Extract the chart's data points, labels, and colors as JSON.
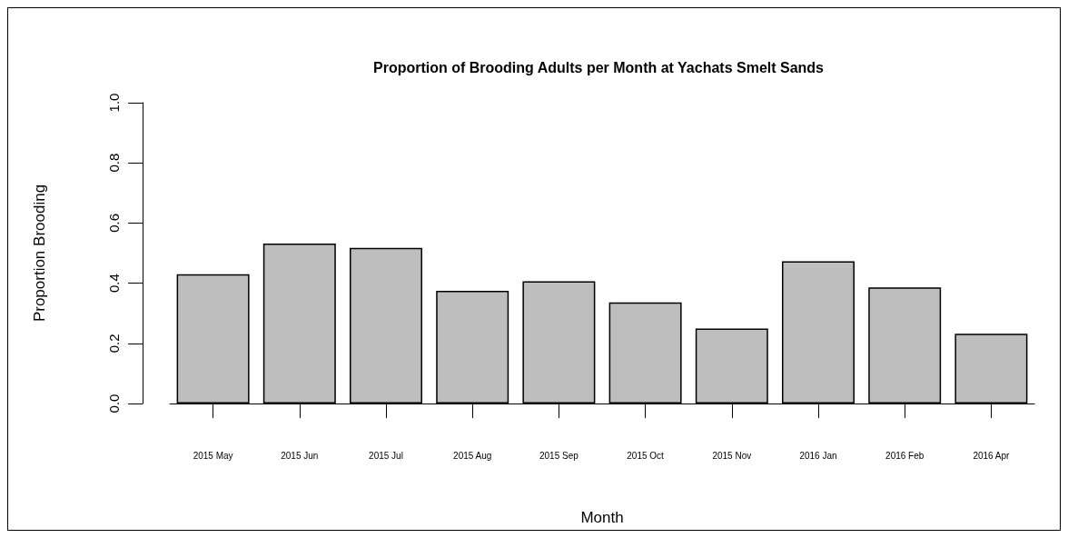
{
  "chart_data": {
    "type": "bar",
    "title": "Proportion of Brooding Adults per Month at Yachats Smelt Sands",
    "xlabel": "Month",
    "ylabel": "Proportion Brooding",
    "categories": [
      "2015 May",
      "2015 Jun",
      "2015 Jul",
      "2015 Aug",
      "2015 Sep",
      "2015 Oct",
      "2015 Nov",
      "2016 Jan",
      "2016 Feb",
      "2016 Apr"
    ],
    "values": [
      0.43,
      0.532,
      0.517,
      0.375,
      0.406,
      0.336,
      0.249,
      0.473,
      0.386,
      0.232
    ],
    "color": "#bebebe",
    "ylim": [
      0,
      1
    ],
    "yticks": [
      {
        "value": 0,
        "label": "0.0"
      },
      0.2,
      0.4,
      0.6,
      0.8,
      {
        "value": 1,
        "label": "1.0"
      }
    ],
    "grid": false
  }
}
